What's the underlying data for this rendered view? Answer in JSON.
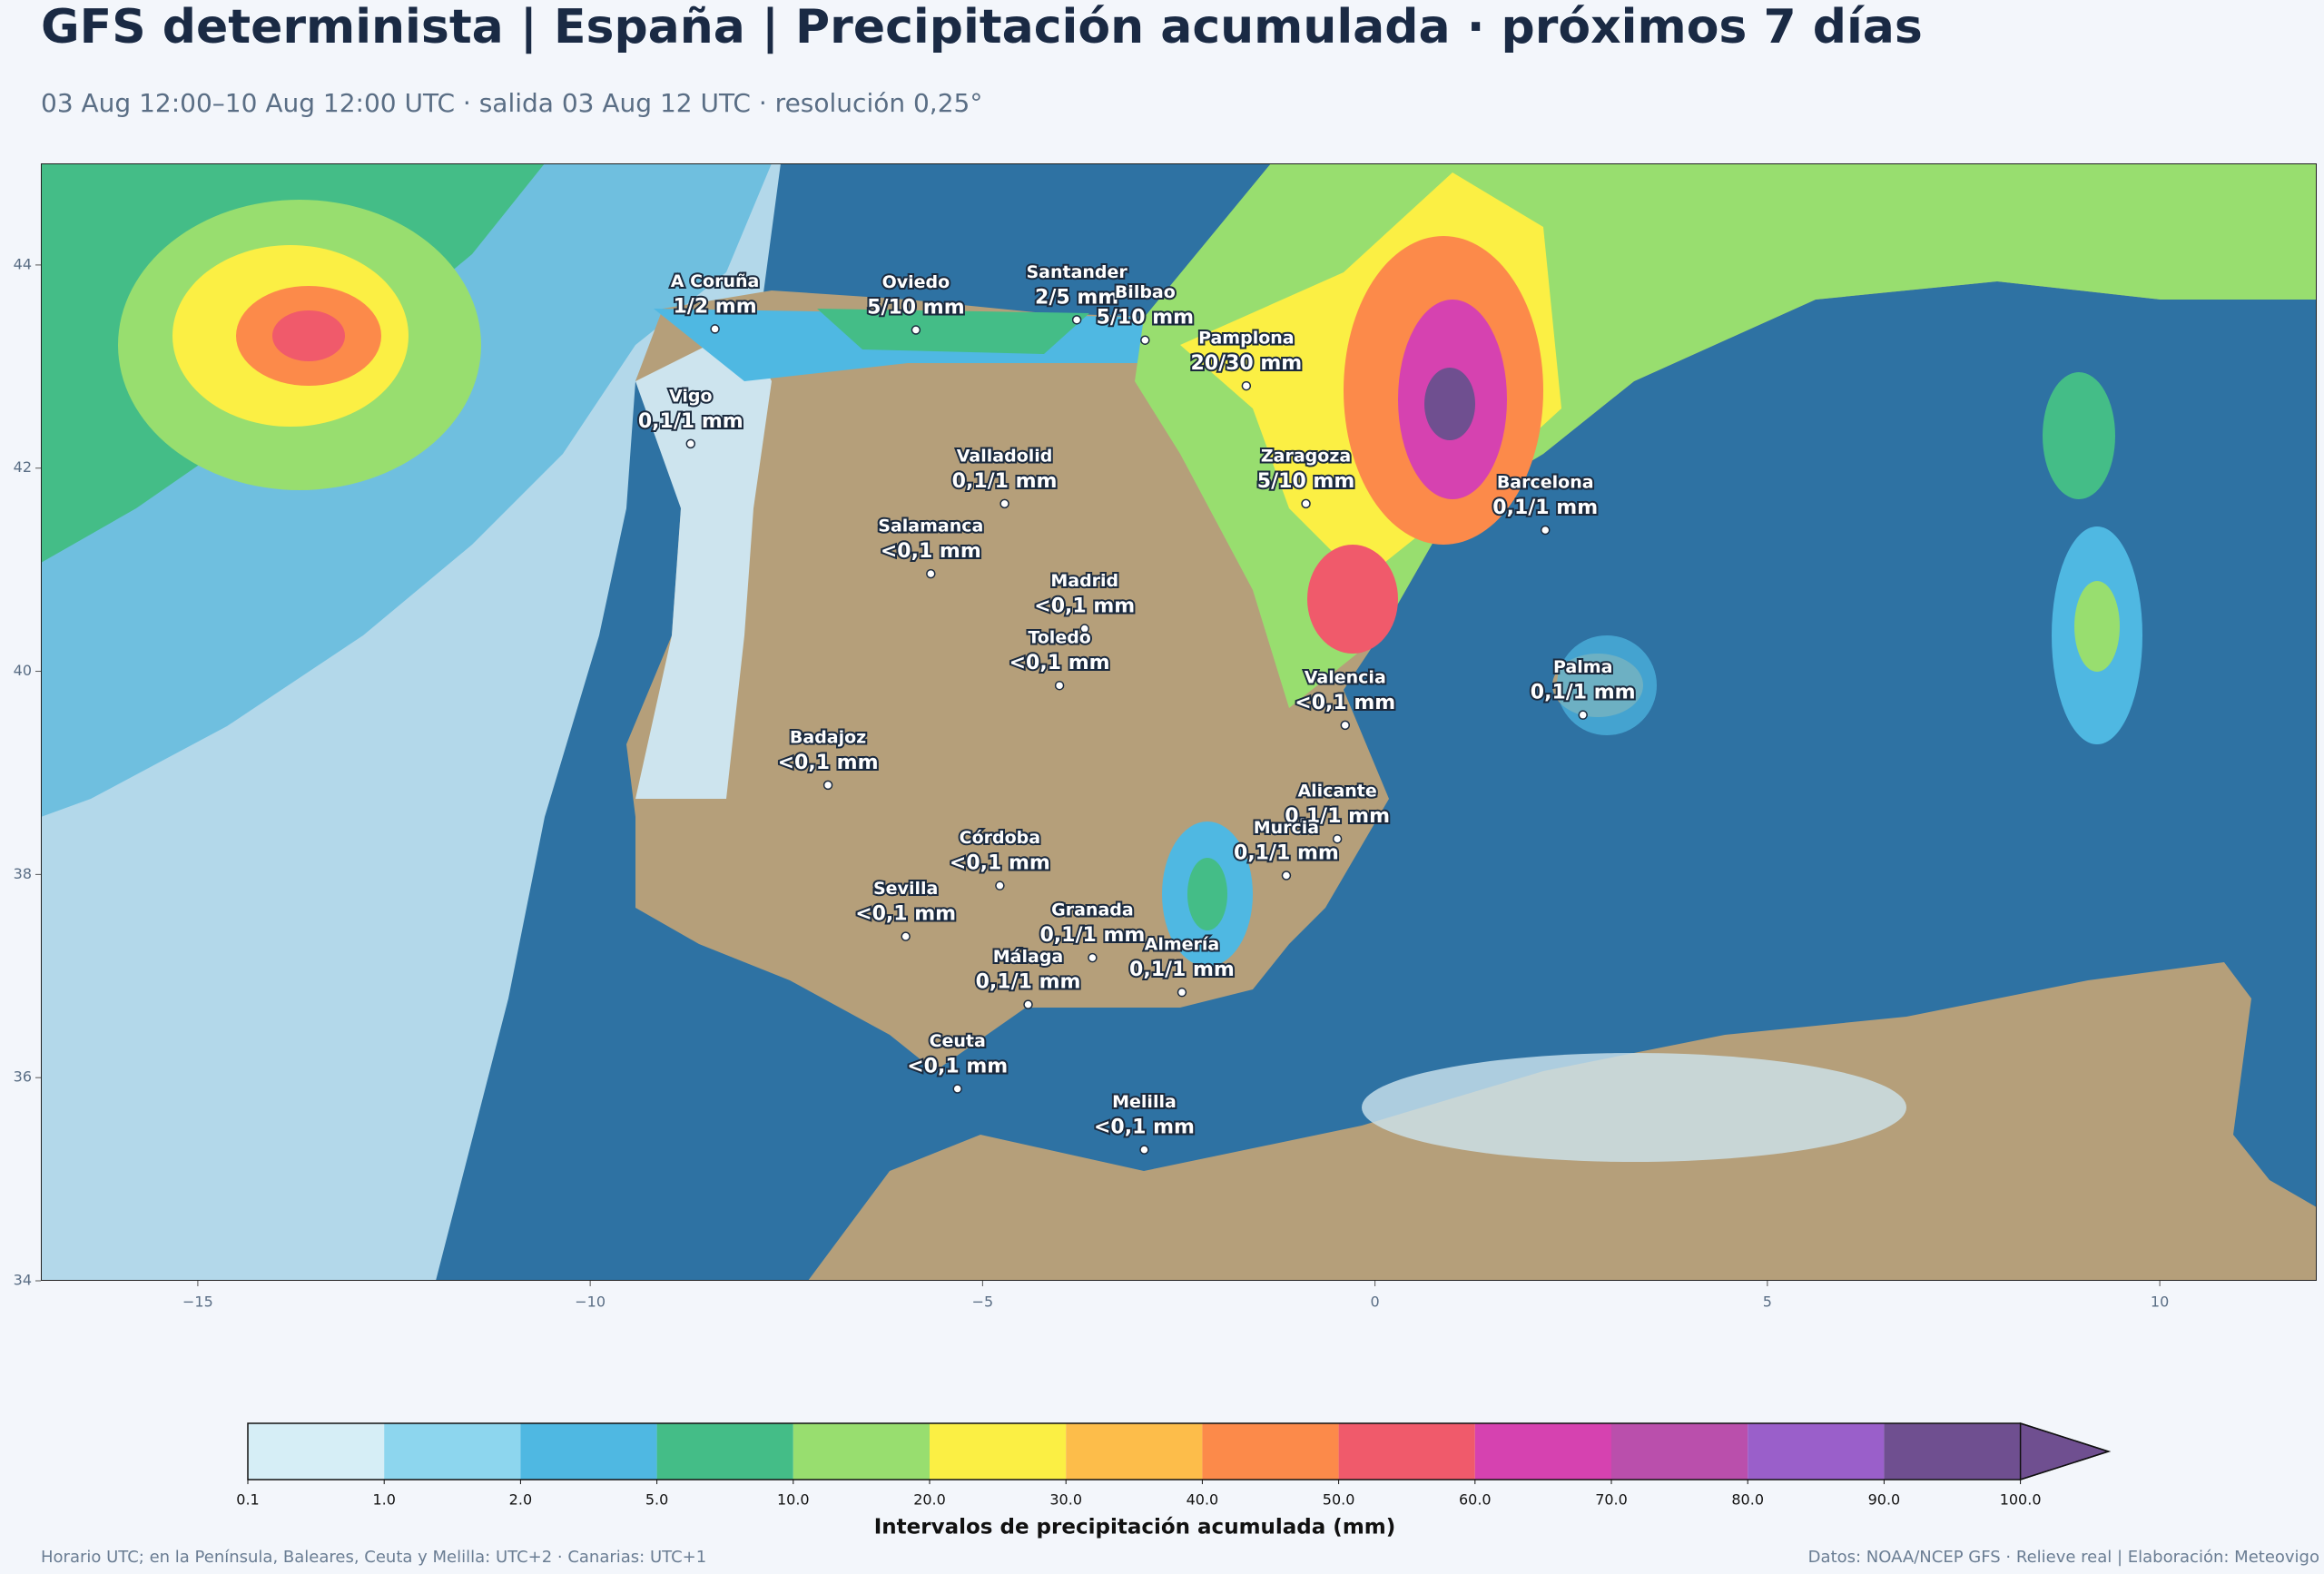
{
  "header": {
    "title": "GFS determinista | España | Precipitación acumulada · próximos 7 días",
    "subtitle": "03 Aug 12:00–10 Aug 12:00 UTC · salida 03 Aug 12 UTC · resolución 0,25°"
  },
  "map": {
    "xlim": [
      -17,
      12
    ],
    "ylim": [
      34,
      45
    ],
    "xticks": [
      {
        "value": -15,
        "label": "−15"
      },
      {
        "value": -10,
        "label": "−10"
      },
      {
        "value": -5,
        "label": "−5"
      },
      0,
      5,
      10
    ],
    "yticks": [
      34,
      36,
      38,
      40,
      42,
      44
    ],
    "cities": [
      {
        "name": "A Coruña",
        "value": "1/2 mm",
        "lon": -8.41,
        "lat": 43.37
      },
      {
        "name": "Oviedo",
        "value": "5/10 mm",
        "lon": -5.85,
        "lat": 43.36
      },
      {
        "name": "Santander",
        "value": "2/5 mm",
        "lon": -3.8,
        "lat": 43.46
      },
      {
        "name": "Bilbao",
        "value": "5/10 mm",
        "lon": -2.93,
        "lat": 43.26
      },
      {
        "name": "Pamplona",
        "value": "20/30 mm",
        "lon": -1.64,
        "lat": 42.81
      },
      {
        "name": "Vigo",
        "value": "0,1/1 mm",
        "lon": -8.72,
        "lat": 42.24
      },
      {
        "name": "Valladolid",
        "value": "0,1/1 mm",
        "lon": -4.72,
        "lat": 41.65
      },
      {
        "name": "Zaragoza",
        "value": "5/10 mm",
        "lon": -0.88,
        "lat": 41.65
      },
      {
        "name": "Barcelona",
        "value": "0,1/1 mm",
        "lon": 2.17,
        "lat": 41.39
      },
      {
        "name": "Salamanca",
        "value": "<0,1 mm",
        "lon": -5.66,
        "lat": 40.96
      },
      {
        "name": "Madrid",
        "value": "<0,1 mm",
        "lon": -3.7,
        "lat": 40.42
      },
      {
        "name": "Valencia",
        "value": "<0,1 mm",
        "lon": -0.38,
        "lat": 39.47
      },
      {
        "name": "Palma",
        "value": "0,1/1 mm",
        "lon": 2.65,
        "lat": 39.57
      },
      {
        "name": "Badajoz",
        "value": "<0,1 mm",
        "lon": -6.97,
        "lat": 38.88
      },
      {
        "name": "Toledo",
        "value": "<0,1 mm",
        "lon": -4.02,
        "lat": 39.86
      },
      {
        "name": "Córdoba",
        "value": "<0,1 mm",
        "lon": -4.78,
        "lat": 37.89
      },
      {
        "name": "Alicante",
        "value": "0,1/1 mm",
        "lon": -0.48,
        "lat": 38.35
      },
      {
        "name": "Murcia",
        "value": "0,1/1 mm",
        "lon": -1.13,
        "lat": 37.99
      },
      {
        "name": "Granada",
        "value": "0,1/1 mm",
        "lon": -3.6,
        "lat": 37.18
      },
      {
        "name": "Sevilla",
        "value": "<0,1 mm",
        "lon": -5.98,
        "lat": 37.39
      },
      {
        "name": "Málaga",
        "value": "0,1/1 mm",
        "lon": -4.42,
        "lat": 36.72
      },
      {
        "name": "Almería",
        "value": "0,1/1 mm",
        "lon": -2.46,
        "lat": 36.84
      },
      {
        "name": "Ceuta",
        "value": "<0,1 mm",
        "lon": -5.32,
        "lat": 35.89
      },
      {
        "name": "Melilla",
        "value": "<0,1 mm",
        "lon": -2.94,
        "lat": 35.29
      }
    ]
  },
  "colorbar": {
    "label": "Intervalos de precipitación acumulada (mm)",
    "bounds": [
      0.1,
      {
        "value": 1,
        "label": "1.0"
      },
      {
        "value": 2,
        "label": "2.0"
      },
      {
        "value": 5,
        "label": "5.0"
      },
      {
        "value": 10,
        "label": "10.0"
      },
      {
        "value": 20,
        "label": "20.0"
      },
      {
        "value": 30,
        "label": "30.0"
      },
      {
        "value": 40,
        "label": "40.0"
      },
      {
        "value": 50,
        "label": "50.0"
      },
      {
        "value": 60,
        "label": "60.0"
      },
      {
        "value": 70,
        "label": "70.0"
      },
      {
        "value": 80,
        "label": "80.0"
      },
      {
        "value": 90,
        "label": "90.0"
      },
      {
        "value": 100,
        "label": "100.0"
      }
    ],
    "colors": [
      "#d6eef6",
      "#8dd6ee",
      "#4fb8e2",
      "#44bd87",
      "#98de6f",
      "#fbef44",
      "#fdbd4a",
      "#fc8a4a",
      "#f05a6b",
      "#d642b0",
      "#ba4fac",
      "#9a5fca",
      "#6f4f90"
    ],
    "extend_color": "#6f4f90"
  },
  "footer": {
    "left": "Horario UTC; en la Península, Baleares, Ceuta y Melilla: UTC+2 · Canarias: UTC+1",
    "right": "Datos: NOAA/NCEP GFS · Relieve real | Elaboración: Meteovigo"
  }
}
